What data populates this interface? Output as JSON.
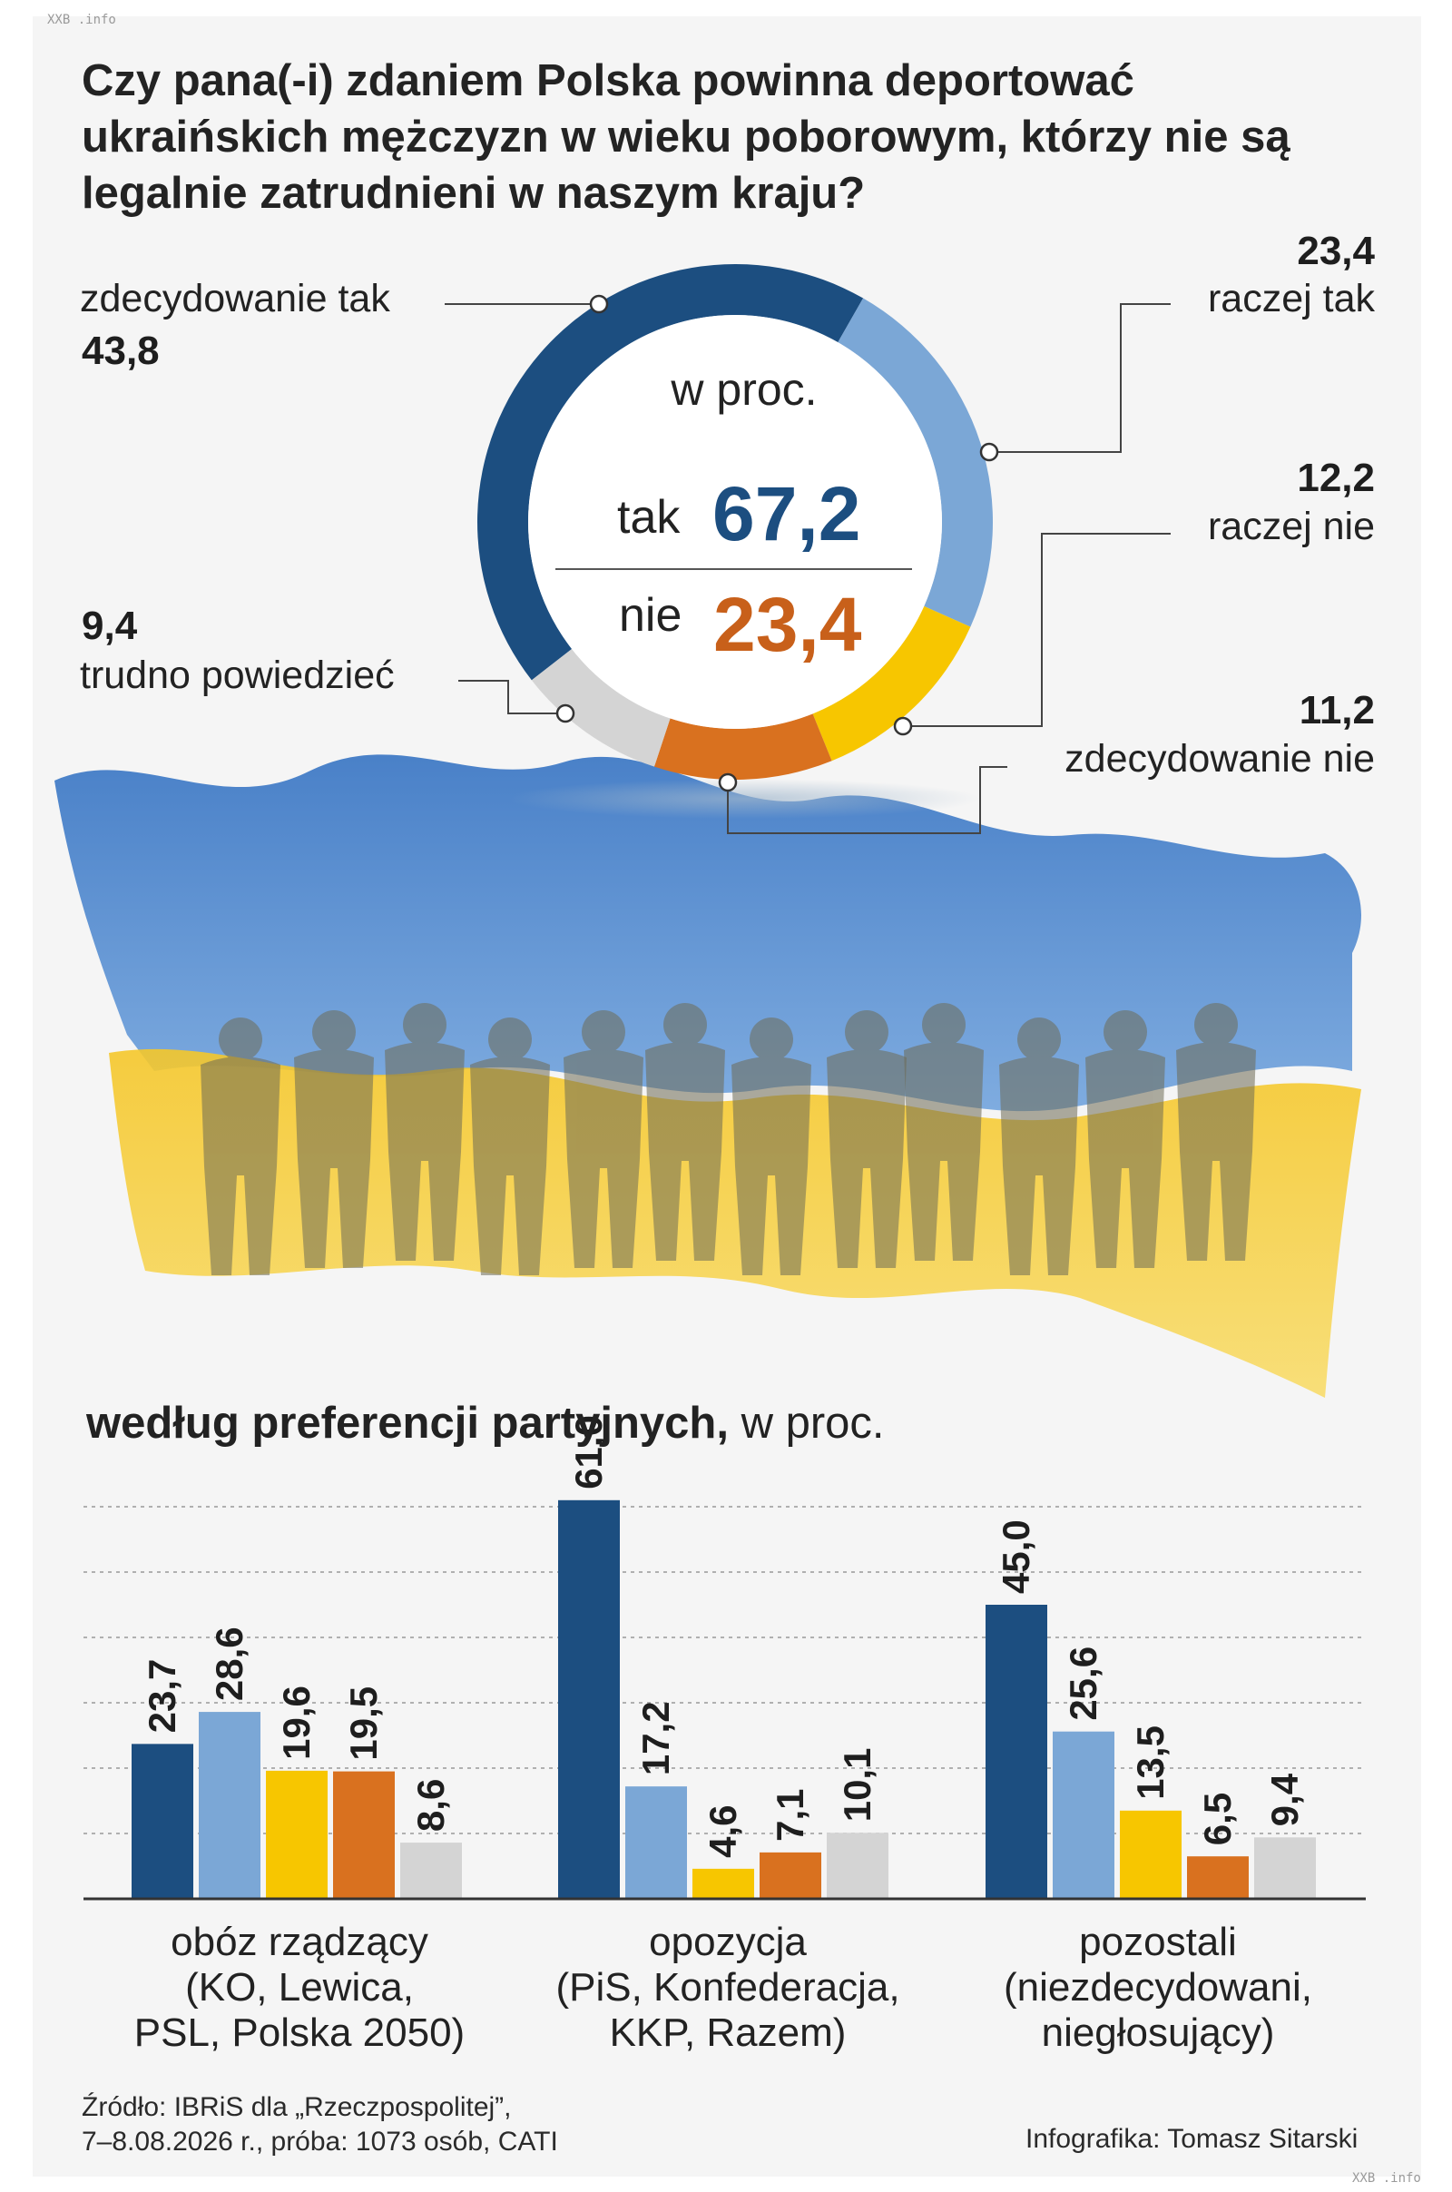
{
  "watermark_top": "XXB .info",
  "watermark_bottom": "XXB .info",
  "title": "Czy pana(-i) zdaniem Polska powinna deportować ukraińskich mężczyzn w wieku poborowym, którzy nie są legalnie zatrudnieni w naszym kraju?",
  "colors": {
    "zdecydowanie_tak": "#1c4e80",
    "raczej_tak": "#7ba7d6",
    "raczej_nie": "#f7c600",
    "zdecydowanie_nie": "#d9711f",
    "trudno": "#d4d4d4",
    "blue_flag": "#2f73c4",
    "yellow_flag": "#f2c21a"
  },
  "donut": {
    "unit": "w proc.",
    "tak_label": "tak",
    "tak_value": "67,2",
    "nie_label": "nie",
    "nie_value": "23,4",
    "segments": [
      {
        "label": "zdecydowanie tak",
        "value": "43,8"
      },
      {
        "label": "raczej tak",
        "value": "23,4"
      },
      {
        "label": "raczej nie",
        "value": "12,2"
      },
      {
        "label": "zdecydowanie nie",
        "value": "11,2"
      },
      {
        "label": "trudno powiedzieć",
        "value": "9,4"
      }
    ]
  },
  "chart_data": {
    "type": "bar",
    "categories": [
      "obóz rządzący",
      "opozycja",
      "pozostali"
    ],
    "category_details": [
      "(KO, Lewica, PSL, Polska 2050)",
      "(PiS, Konfederacja, KKP, Razem)",
      "(niezdecydowani, niegłosujący)"
    ],
    "series": [
      {
        "name": "zdecydowanie tak",
        "values": [
          23.7,
          61.0,
          45.0
        ],
        "labels": [
          "23,7",
          "61,0",
          "45,0"
        ]
      },
      {
        "name": "raczej tak",
        "values": [
          28.6,
          17.2,
          25.6
        ],
        "labels": [
          "28,6",
          "17,2",
          "25,6"
        ]
      },
      {
        "name": "raczej nie",
        "values": [
          19.6,
          4.6,
          13.5
        ],
        "labels": [
          "19,6",
          "4,6",
          "13,5"
        ]
      },
      {
        "name": "zdecydowanie nie",
        "values": [
          19.5,
          7.1,
          6.5
        ],
        "labels": [
          "19,5",
          "7,1",
          "6,5"
        ]
      },
      {
        "name": "trudno powiedzieć",
        "values": [
          8.6,
          10.1,
          9.4
        ],
        "labels": [
          "8,6",
          "10,1",
          "9,4"
        ]
      }
    ],
    "ylim": [
      0,
      60
    ],
    "grid": true,
    "title_bold": "według preferencji partyjnych,",
    "title_rest": "w proc."
  },
  "groups": [
    {
      "name": "obóz rządzący",
      "line1": "(KO, Lewica,",
      "line2": "PSL, Polska 2050)"
    },
    {
      "name": "opozycja",
      "line1": "(PiS, Konfederacja,",
      "line2": "KKP, Razem)"
    },
    {
      "name": "pozostali",
      "line1": "(niezdecydowani,",
      "line2": "niegłosujący)"
    }
  ],
  "source_line1": "Źródło: IBRiS dla „Rzeczpospolitej”,",
  "source_line2": "7–8.08.2026 r., próba: 1073 osób, CATI",
  "credit": "Infografika: Tomasz Sitarski"
}
